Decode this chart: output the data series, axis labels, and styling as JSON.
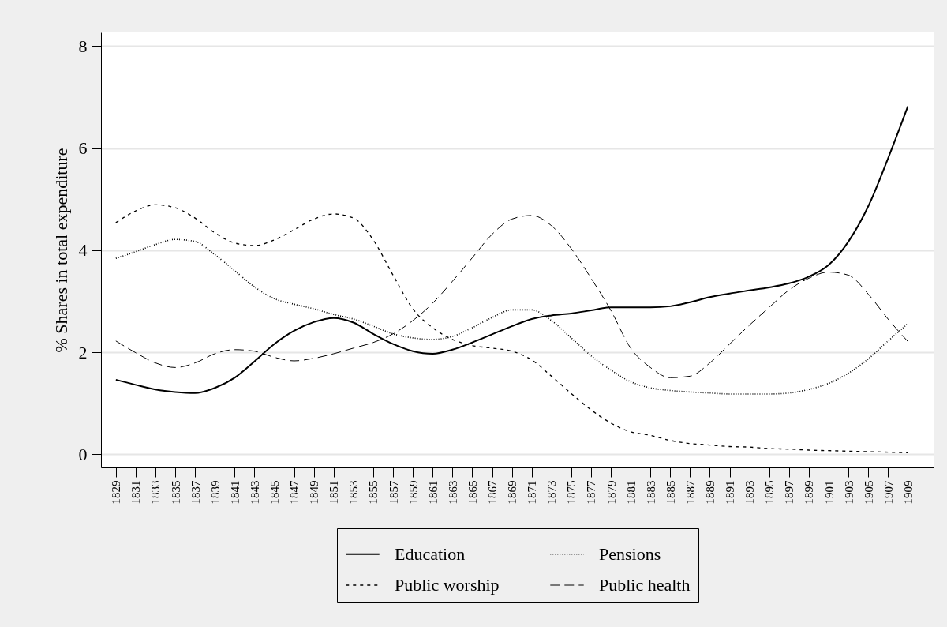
{
  "chart_data": {
    "type": "line",
    "ylabel": "% Shares in total expenditure",
    "x": [
      1829,
      1831,
      1833,
      1835,
      1837,
      1839,
      1841,
      1843,
      1845,
      1847,
      1849,
      1851,
      1853,
      1855,
      1857,
      1859,
      1861,
      1863,
      1865,
      1867,
      1869,
      1871,
      1873,
      1875,
      1877,
      1879,
      1881,
      1883,
      1885,
      1887,
      1889,
      1891,
      1893,
      1895,
      1897,
      1899,
      1901,
      1903,
      1905,
      1907,
      1909
    ],
    "xlim": [
      1827.5,
      1911.6
    ],
    "xticks": [
      1829,
      1831,
      1833,
      1835,
      1837,
      1839,
      1841,
      1843,
      1845,
      1847,
      1849,
      1851,
      1853,
      1855,
      1857,
      1859,
      1861,
      1863,
      1865,
      1867,
      1869,
      1871,
      1873,
      1875,
      1877,
      1879,
      1881,
      1883,
      1885,
      1887,
      1889,
      1891,
      1893,
      1895,
      1897,
      1899,
      1901,
      1903,
      1905,
      1907,
      1909
    ],
    "ylim": [
      -0.26,
      8.27
    ],
    "yticks": [
      0,
      2,
      4,
      6,
      8
    ],
    "grid": "y",
    "legend": "bottom",
    "marker": "none",
    "series": [
      {
        "name": "Education",
        "color": "#000000",
        "line_style": "solid",
        "values": [
          1.46,
          1.36,
          1.27,
          1.22,
          1.2,
          1.3,
          1.5,
          1.82,
          2.16,
          2.42,
          2.59,
          2.67,
          2.58,
          2.36,
          2.16,
          2.02,
          1.97,
          2.05,
          2.19,
          2.35,
          2.51,
          2.65,
          2.72,
          2.76,
          2.82,
          2.88,
          2.88,
          2.88,
          2.9,
          2.98,
          3.08,
          3.15,
          3.21,
          3.27,
          3.35,
          3.48,
          3.71,
          4.17,
          4.86,
          5.8,
          6.82
        ]
      },
      {
        "name": "Pensions",
        "color": "#000000",
        "line_style": "dotted",
        "values": [
          3.84,
          3.97,
          4.11,
          4.21,
          4.17,
          3.91,
          3.6,
          3.28,
          3.05,
          2.94,
          2.85,
          2.74,
          2.65,
          2.51,
          2.36,
          2.28,
          2.25,
          2.31,
          2.48,
          2.68,
          2.83,
          2.83,
          2.62,
          2.28,
          1.93,
          1.65,
          1.42,
          1.3,
          1.25,
          1.22,
          1.2,
          1.18,
          1.18,
          1.18,
          1.2,
          1.27,
          1.39,
          1.59,
          1.87,
          2.22,
          2.56
        ]
      },
      {
        "name": "Public worship",
        "color": "#000000",
        "line_style": "dashed",
        "values": [
          4.54,
          4.77,
          4.89,
          4.83,
          4.63,
          4.34,
          4.14,
          4.09,
          4.2,
          4.4,
          4.61,
          4.71,
          4.63,
          4.2,
          3.51,
          2.85,
          2.48,
          2.25,
          2.13,
          2.08,
          2.02,
          1.85,
          1.53,
          1.19,
          0.87,
          0.61,
          0.44,
          0.37,
          0.27,
          0.21,
          0.18,
          0.15,
          0.14,
          0.11,
          0.1,
          0.08,
          0.07,
          0.06,
          0.05,
          0.04,
          0.03
        ]
      },
      {
        "name": "Public health",
        "color": "#000000",
        "line_style": "longdash",
        "values": [
          2.22,
          1.99,
          1.79,
          1.7,
          1.79,
          1.97,
          2.05,
          2.02,
          1.9,
          1.83,
          1.88,
          1.97,
          2.08,
          2.19,
          2.36,
          2.62,
          2.96,
          3.39,
          3.85,
          4.31,
          4.61,
          4.68,
          4.48,
          4.03,
          3.45,
          2.82,
          2.08,
          1.7,
          1.5,
          1.53,
          1.79,
          2.16,
          2.53,
          2.88,
          3.22,
          3.45,
          3.57,
          3.51,
          3.14,
          2.65,
          2.21
        ]
      }
    ]
  }
}
